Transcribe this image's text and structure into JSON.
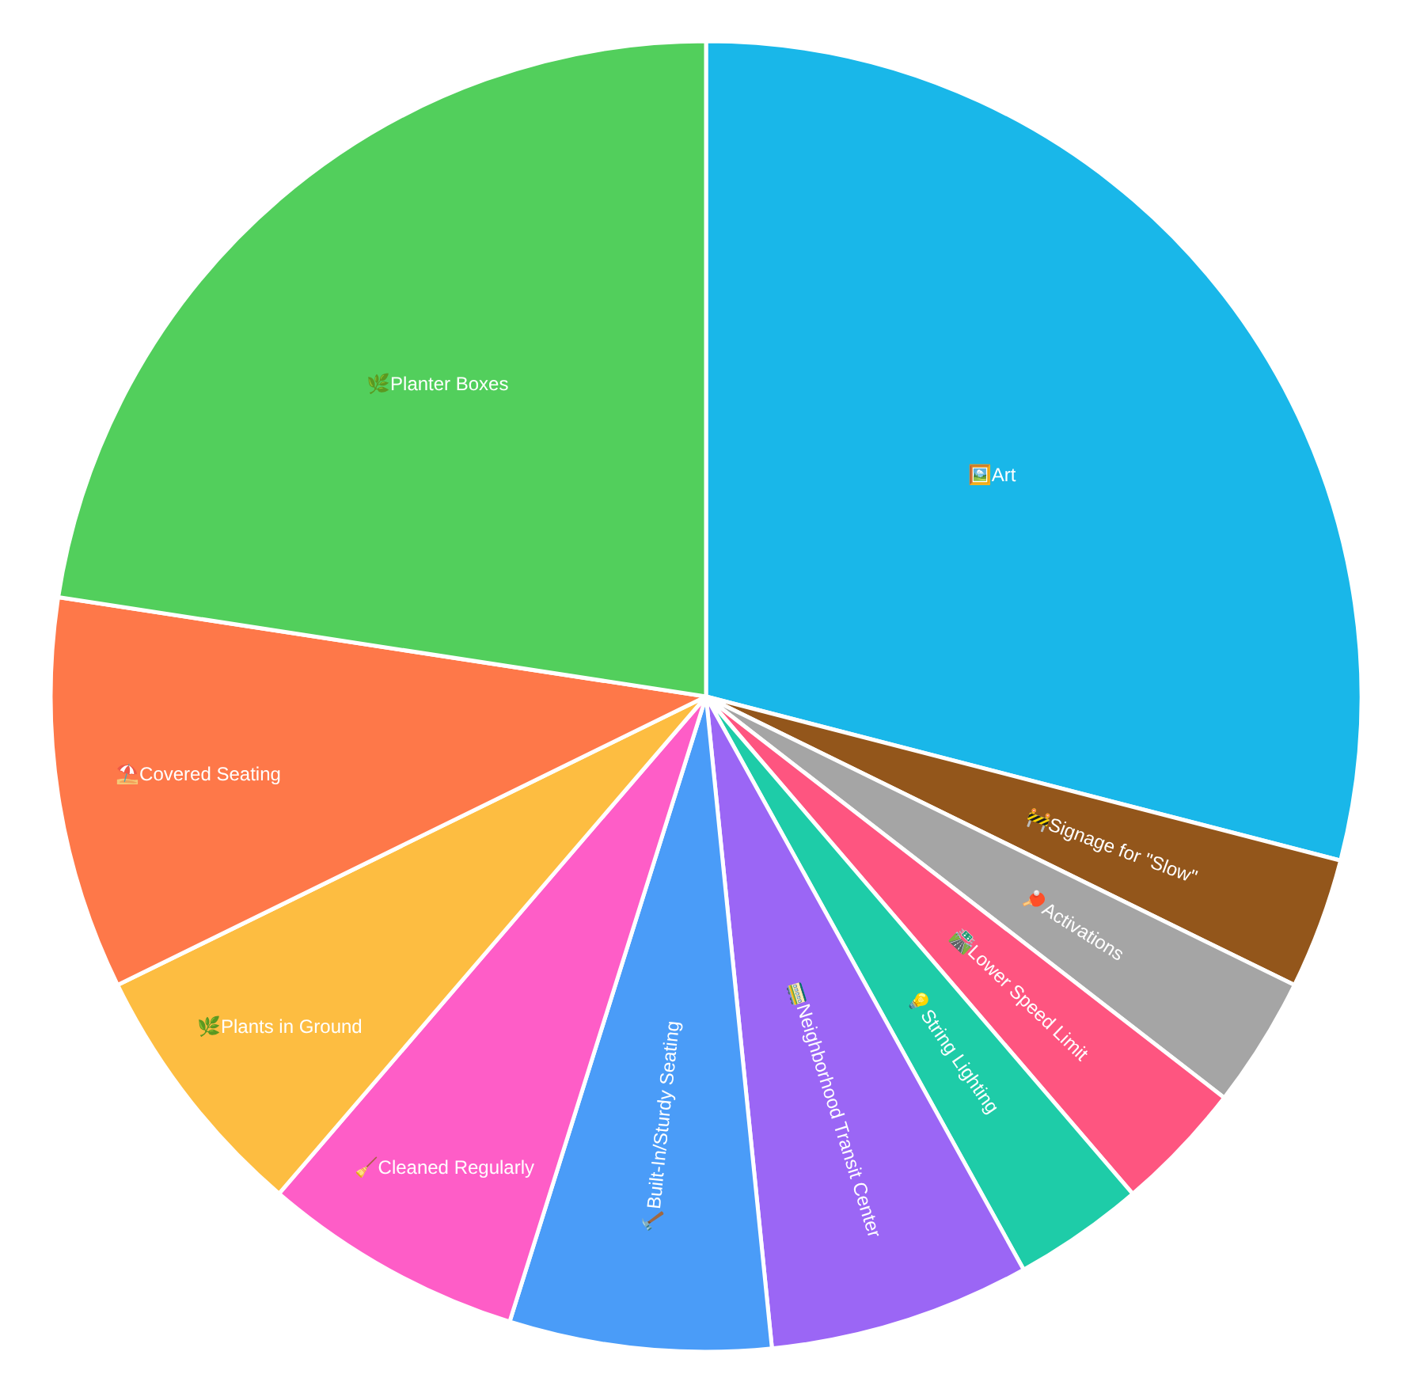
{
  "chart_data": {
    "type": "pie",
    "categories": [
      "🖼️Art",
      "🚧Signage for \"Slow\"",
      "🏓Activations",
      "🛣️Lower Speed Limit",
      "💡String Lighting",
      "🚃Neighborhood Transit Center",
      "🔨Built-In/Sturdy Seating",
      "🧹Cleaned Regularly",
      "🌿Plants in Ground",
      "⛱️Covered Seating",
      "🌿Planter Boxes"
    ],
    "values": [
      29.03,
      3.23,
      3.23,
      3.23,
      3.23,
      6.45,
      6.45,
      6.45,
      6.45,
      9.68,
      22.58
    ],
    "colors": [
      "#19b7e9",
      "#93561b",
      "#a5a5a5",
      "#fe5580",
      "#1ecca8",
      "#9b66f5",
      "#4a9cf8",
      "#fe5dc7",
      "#fdbd41",
      "#fe7849",
      "#52cf5c"
    ]
  }
}
